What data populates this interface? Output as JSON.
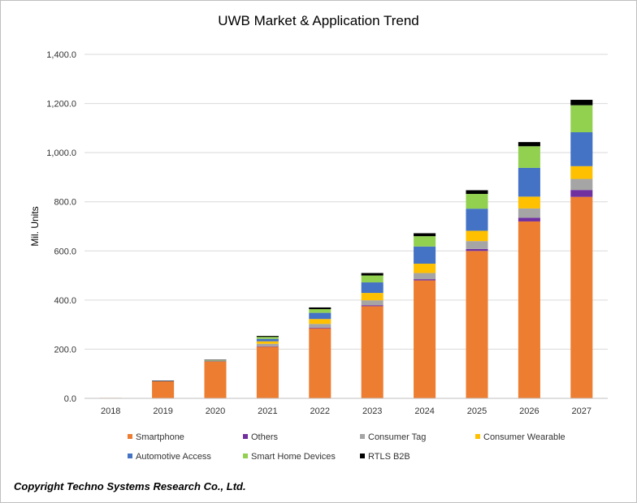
{
  "chart_data": {
    "type": "bar",
    "stacked": true,
    "title": "UWB Market & Application Trend",
    "xlabel": "",
    "ylabel": "Mil. Units",
    "ylim": [
      0,
      1400
    ],
    "yticks": [
      "0.0",
      "200.0",
      "400.0",
      "600.0",
      "800.0",
      "1,000.0",
      "1,200.0",
      "1,400.0"
    ],
    "grid": true,
    "legend_position": "bottom",
    "categories": [
      "2018",
      "2019",
      "2020",
      "2021",
      "2022",
      "2023",
      "2024",
      "2025",
      "2026",
      "2027"
    ],
    "series": [
      {
        "name": "Smartphone",
        "color": "#ED7D31",
        "values": [
          2,
          70,
          150,
          210,
          285,
          375,
          480,
          600,
          720,
          820
        ]
      },
      {
        "name": "Others",
        "color": "#7030A0",
        "values": [
          0,
          0,
          1,
          2,
          3,
          4,
          5,
          8,
          15,
          28
        ]
      },
      {
        "name": "Consumer Tag",
        "color": "#A5A5A5",
        "values": [
          0,
          0,
          1,
          10,
          15,
          20,
          25,
          32,
          38,
          45
        ]
      },
      {
        "name": "Consumer Wearable",
        "color": "#FFC000",
        "values": [
          0,
          0,
          1,
          10,
          20,
          30,
          38,
          42,
          48,
          52
        ]
      },
      {
        "name": "Automotive Access",
        "color": "#4472C4",
        "values": [
          0,
          1,
          2,
          10,
          25,
          43,
          70,
          90,
          117,
          138
        ]
      },
      {
        "name": "Smart Home Devices",
        "color": "#92D050",
        "values": [
          0,
          0,
          1,
          8,
          15,
          28,
          42,
          60,
          88,
          110
        ]
      },
      {
        "name": "RTLS B2B",
        "color": "#000000",
        "values": [
          0,
          1,
          1,
          4,
          7,
          10,
          12,
          15,
          17,
          22
        ]
      }
    ]
  },
  "copyright": "Copyright Techno Systems Research Co., Ltd."
}
